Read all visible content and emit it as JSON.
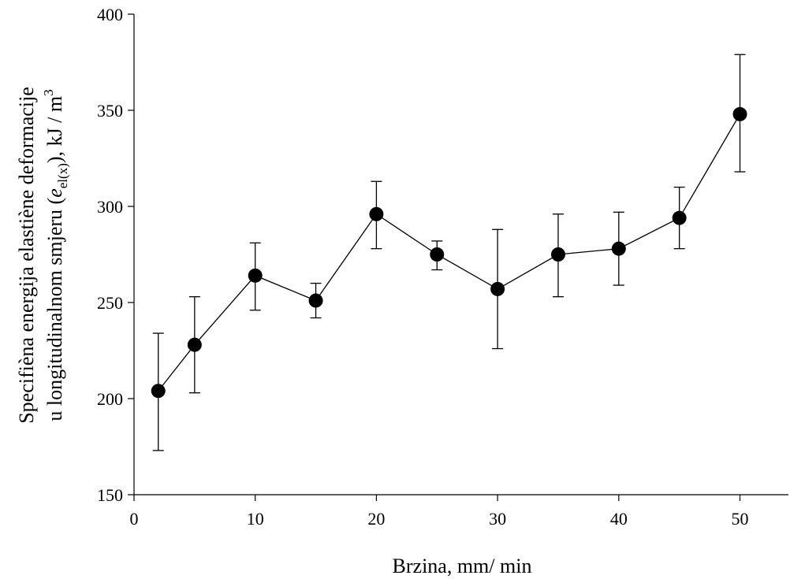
{
  "chart_data": {
    "type": "scatter",
    "xlabel": "Brzina, mm/ min",
    "ylabel": {
      "line1": "Specifièna energija elastiène deformacije",
      "line2_prefix": "u longitudinalnom smjeru (",
      "symbol": "e",
      "subscript": "el(x)",
      "line2_suffix": "), kJ / m",
      "superscript": "3"
    },
    "xlim": [
      0,
      54
    ],
    "ylim": [
      150,
      400
    ],
    "xticks": [
      "0",
      "10",
      "20",
      "30",
      "40",
      "50"
    ],
    "yticks": [
      "150",
      "200",
      "250",
      "300",
      "350",
      "400"
    ],
    "grid": false,
    "series": [
      {
        "x": [
          2,
          5,
          10,
          15,
          20,
          25,
          30,
          35,
          40,
          45,
          50
        ],
        "y": [
          204,
          228,
          264,
          251,
          296,
          275,
          257,
          275,
          278,
          294,
          348
        ],
        "err_low": [
          173,
          203,
          246,
          242,
          278,
          267,
          226,
          253,
          259,
          278,
          318
        ],
        "err_high": [
          234,
          253,
          281,
          260,
          313,
          282,
          288,
          296,
          297,
          310,
          379
        ]
      }
    ]
  }
}
